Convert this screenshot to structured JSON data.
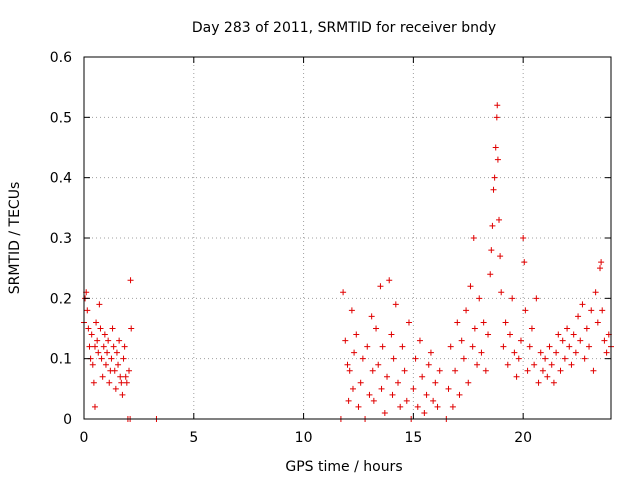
{
  "chart_data": {
    "type": "scatter",
    "title": "Day 283 of 2011, SRMTID for receiver bndy",
    "xlabel": "GPS time / hours",
    "ylabel": "SRMTID / TECUs",
    "xlim": [
      0,
      24
    ],
    "ylim": [
      0,
      0.6
    ],
    "xticks": [
      0,
      5,
      10,
      15,
      20
    ],
    "xtick_labels": [
      "0",
      "5",
      "10",
      "15",
      "20"
    ],
    "yticks": [
      0,
      0.1,
      0.2,
      0.3,
      0.4,
      0.5,
      0.6
    ],
    "ytick_labels": [
      "0",
      "0.1",
      "0.2",
      "0.3",
      "0.4",
      "0.5",
      "0.6"
    ],
    "grid": true,
    "marker": "+",
    "color": "#e00000",
    "series": [
      {
        "name": "SRMTID",
        "points": [
          [
            0.0,
            0.16
          ],
          [
            0.05,
            0.2
          ],
          [
            0.1,
            0.21
          ],
          [
            0.15,
            0.18
          ],
          [
            0.2,
            0.15
          ],
          [
            0.25,
            0.12
          ],
          [
            0.3,
            0.1
          ],
          [
            0.35,
            0.14
          ],
          [
            0.4,
            0.09
          ],
          [
            0.45,
            0.06
          ],
          [
            0.5,
            0.12
          ],
          [
            0.5,
            0.02
          ],
          [
            0.55,
            0.16
          ],
          [
            0.6,
            0.13
          ],
          [
            0.65,
            0.11
          ],
          [
            0.7,
            0.19
          ],
          [
            0.75,
            0.15
          ],
          [
            0.8,
            0.1
          ],
          [
            0.85,
            0.07
          ],
          [
            0.9,
            0.12
          ],
          [
            0.95,
            0.14
          ],
          [
            1.0,
            0.09
          ],
          [
            1.05,
            0.11
          ],
          [
            1.1,
            0.13
          ],
          [
            1.15,
            0.06
          ],
          [
            1.2,
            0.08
          ],
          [
            1.25,
            0.1
          ],
          [
            1.3,
            0.15
          ],
          [
            1.35,
            0.12
          ],
          [
            1.4,
            0.08
          ],
          [
            1.45,
            0.05
          ],
          [
            1.5,
            0.11
          ],
          [
            1.55,
            0.09
          ],
          [
            1.6,
            0.13
          ],
          [
            1.65,
            0.07
          ],
          [
            1.7,
            0.06
          ],
          [
            1.75,
            0.04
          ],
          [
            1.8,
            0.1
          ],
          [
            1.85,
            0.12
          ],
          [
            1.9,
            0.07
          ],
          [
            1.95,
            0.06
          ],
          [
            2.0,
            0.0
          ],
          [
            2.05,
            0.08
          ],
          [
            2.1,
            0.0
          ],
          [
            2.12,
            0.23
          ],
          [
            2.15,
            0.15
          ],
          [
            3.3,
            0.0
          ],
          [
            11.7,
            0.0
          ],
          [
            11.8,
            0.21
          ],
          [
            11.9,
            0.13
          ],
          [
            12.0,
            0.09
          ],
          [
            12.05,
            0.03
          ],
          [
            12.1,
            0.08
          ],
          [
            12.2,
            0.18
          ],
          [
            12.25,
            0.05
          ],
          [
            12.3,
            0.11
          ],
          [
            12.4,
            0.14
          ],
          [
            12.5,
            0.02
          ],
          [
            12.6,
            0.06
          ],
          [
            12.7,
            0.1
          ],
          [
            12.8,
            0.0
          ],
          [
            12.9,
            0.12
          ],
          [
            13.0,
            0.04
          ],
          [
            13.1,
            0.17
          ],
          [
            13.15,
            0.08
          ],
          [
            13.2,
            0.03
          ],
          [
            13.3,
            0.15
          ],
          [
            13.4,
            0.09
          ],
          [
            13.5,
            0.22
          ],
          [
            13.55,
            0.05
          ],
          [
            13.6,
            0.12
          ],
          [
            13.7,
            0.01
          ],
          [
            13.8,
            0.07
          ],
          [
            13.9,
            0.23
          ],
          [
            14.0,
            0.14
          ],
          [
            14.05,
            0.04
          ],
          [
            14.1,
            0.1
          ],
          [
            14.2,
            0.19
          ],
          [
            14.3,
            0.06
          ],
          [
            14.4,
            0.02
          ],
          [
            14.5,
            0.12
          ],
          [
            14.6,
            0.08
          ],
          [
            14.7,
            0.03
          ],
          [
            14.8,
            0.16
          ],
          [
            14.9,
            0.0
          ],
          [
            15.0,
            0.05
          ],
          [
            15.1,
            0.1
          ],
          [
            15.2,
            0.02
          ],
          [
            15.3,
            0.13
          ],
          [
            15.4,
            0.07
          ],
          [
            15.5,
            0.01
          ],
          [
            15.6,
            0.04
          ],
          [
            15.7,
            0.09
          ],
          [
            15.8,
            0.11
          ],
          [
            15.9,
            0.03
          ],
          [
            16.0,
            0.06
          ],
          [
            16.1,
            0.02
          ],
          [
            16.2,
            0.08
          ],
          [
            16.5,
            0.0
          ],
          [
            16.6,
            0.05
          ],
          [
            16.7,
            0.12
          ],
          [
            16.8,
            0.02
          ],
          [
            16.9,
            0.08
          ],
          [
            17.0,
            0.16
          ],
          [
            17.1,
            0.04
          ],
          [
            17.2,
            0.13
          ],
          [
            17.3,
            0.1
          ],
          [
            17.4,
            0.18
          ],
          [
            17.5,
            0.06
          ],
          [
            17.6,
            0.22
          ],
          [
            17.7,
            0.12
          ],
          [
            17.75,
            0.3
          ],
          [
            17.8,
            0.15
          ],
          [
            17.9,
            0.09
          ],
          [
            18.0,
            0.2
          ],
          [
            18.1,
            0.11
          ],
          [
            18.2,
            0.16
          ],
          [
            18.3,
            0.08
          ],
          [
            18.4,
            0.14
          ],
          [
            18.5,
            0.24
          ],
          [
            18.55,
            0.28
          ],
          [
            18.6,
            0.32
          ],
          [
            18.65,
            0.38
          ],
          [
            18.7,
            0.4
          ],
          [
            18.75,
            0.45
          ],
          [
            18.8,
            0.5
          ],
          [
            18.82,
            0.52
          ],
          [
            18.85,
            0.43
          ],
          [
            18.9,
            0.33
          ],
          [
            18.95,
            0.27
          ],
          [
            19.0,
            0.21
          ],
          [
            19.1,
            0.12
          ],
          [
            19.2,
            0.16
          ],
          [
            19.3,
            0.09
          ],
          [
            19.4,
            0.14
          ],
          [
            19.5,
            0.2
          ],
          [
            19.6,
            0.11
          ],
          [
            19.7,
            0.07
          ],
          [
            19.8,
            0.1
          ],
          [
            19.9,
            0.13
          ],
          [
            20.0,
            0.3
          ],
          [
            20.05,
            0.26
          ],
          [
            20.1,
            0.18
          ],
          [
            20.2,
            0.08
          ],
          [
            20.3,
            0.12
          ],
          [
            20.4,
            0.15
          ],
          [
            20.5,
            0.09
          ],
          [
            20.6,
            0.2
          ],
          [
            20.7,
            0.06
          ],
          [
            20.8,
            0.11
          ],
          [
            20.9,
            0.08
          ],
          [
            21.0,
            0.1
          ],
          [
            21.1,
            0.07
          ],
          [
            21.2,
            0.12
          ],
          [
            21.3,
            0.09
          ],
          [
            21.4,
            0.06
          ],
          [
            21.5,
            0.11
          ],
          [
            21.6,
            0.14
          ],
          [
            21.7,
            0.08
          ],
          [
            21.8,
            0.13
          ],
          [
            21.9,
            0.1
          ],
          [
            22.0,
            0.15
          ],
          [
            22.1,
            0.12
          ],
          [
            22.2,
            0.09
          ],
          [
            22.3,
            0.14
          ],
          [
            22.4,
            0.11
          ],
          [
            22.5,
            0.17
          ],
          [
            22.6,
            0.13
          ],
          [
            22.7,
            0.19
          ],
          [
            22.8,
            0.1
          ],
          [
            22.9,
            0.15
          ],
          [
            23.0,
            0.12
          ],
          [
            23.1,
            0.18
          ],
          [
            23.2,
            0.08
          ],
          [
            23.3,
            0.21
          ],
          [
            23.4,
            0.16
          ],
          [
            23.5,
            0.25
          ],
          [
            23.55,
            0.26
          ],
          [
            23.6,
            0.18
          ],
          [
            23.7,
            0.13
          ],
          [
            23.8,
            0.11
          ],
          [
            23.9,
            0.14
          ],
          [
            24.0,
            0.12
          ]
        ]
      }
    ]
  }
}
